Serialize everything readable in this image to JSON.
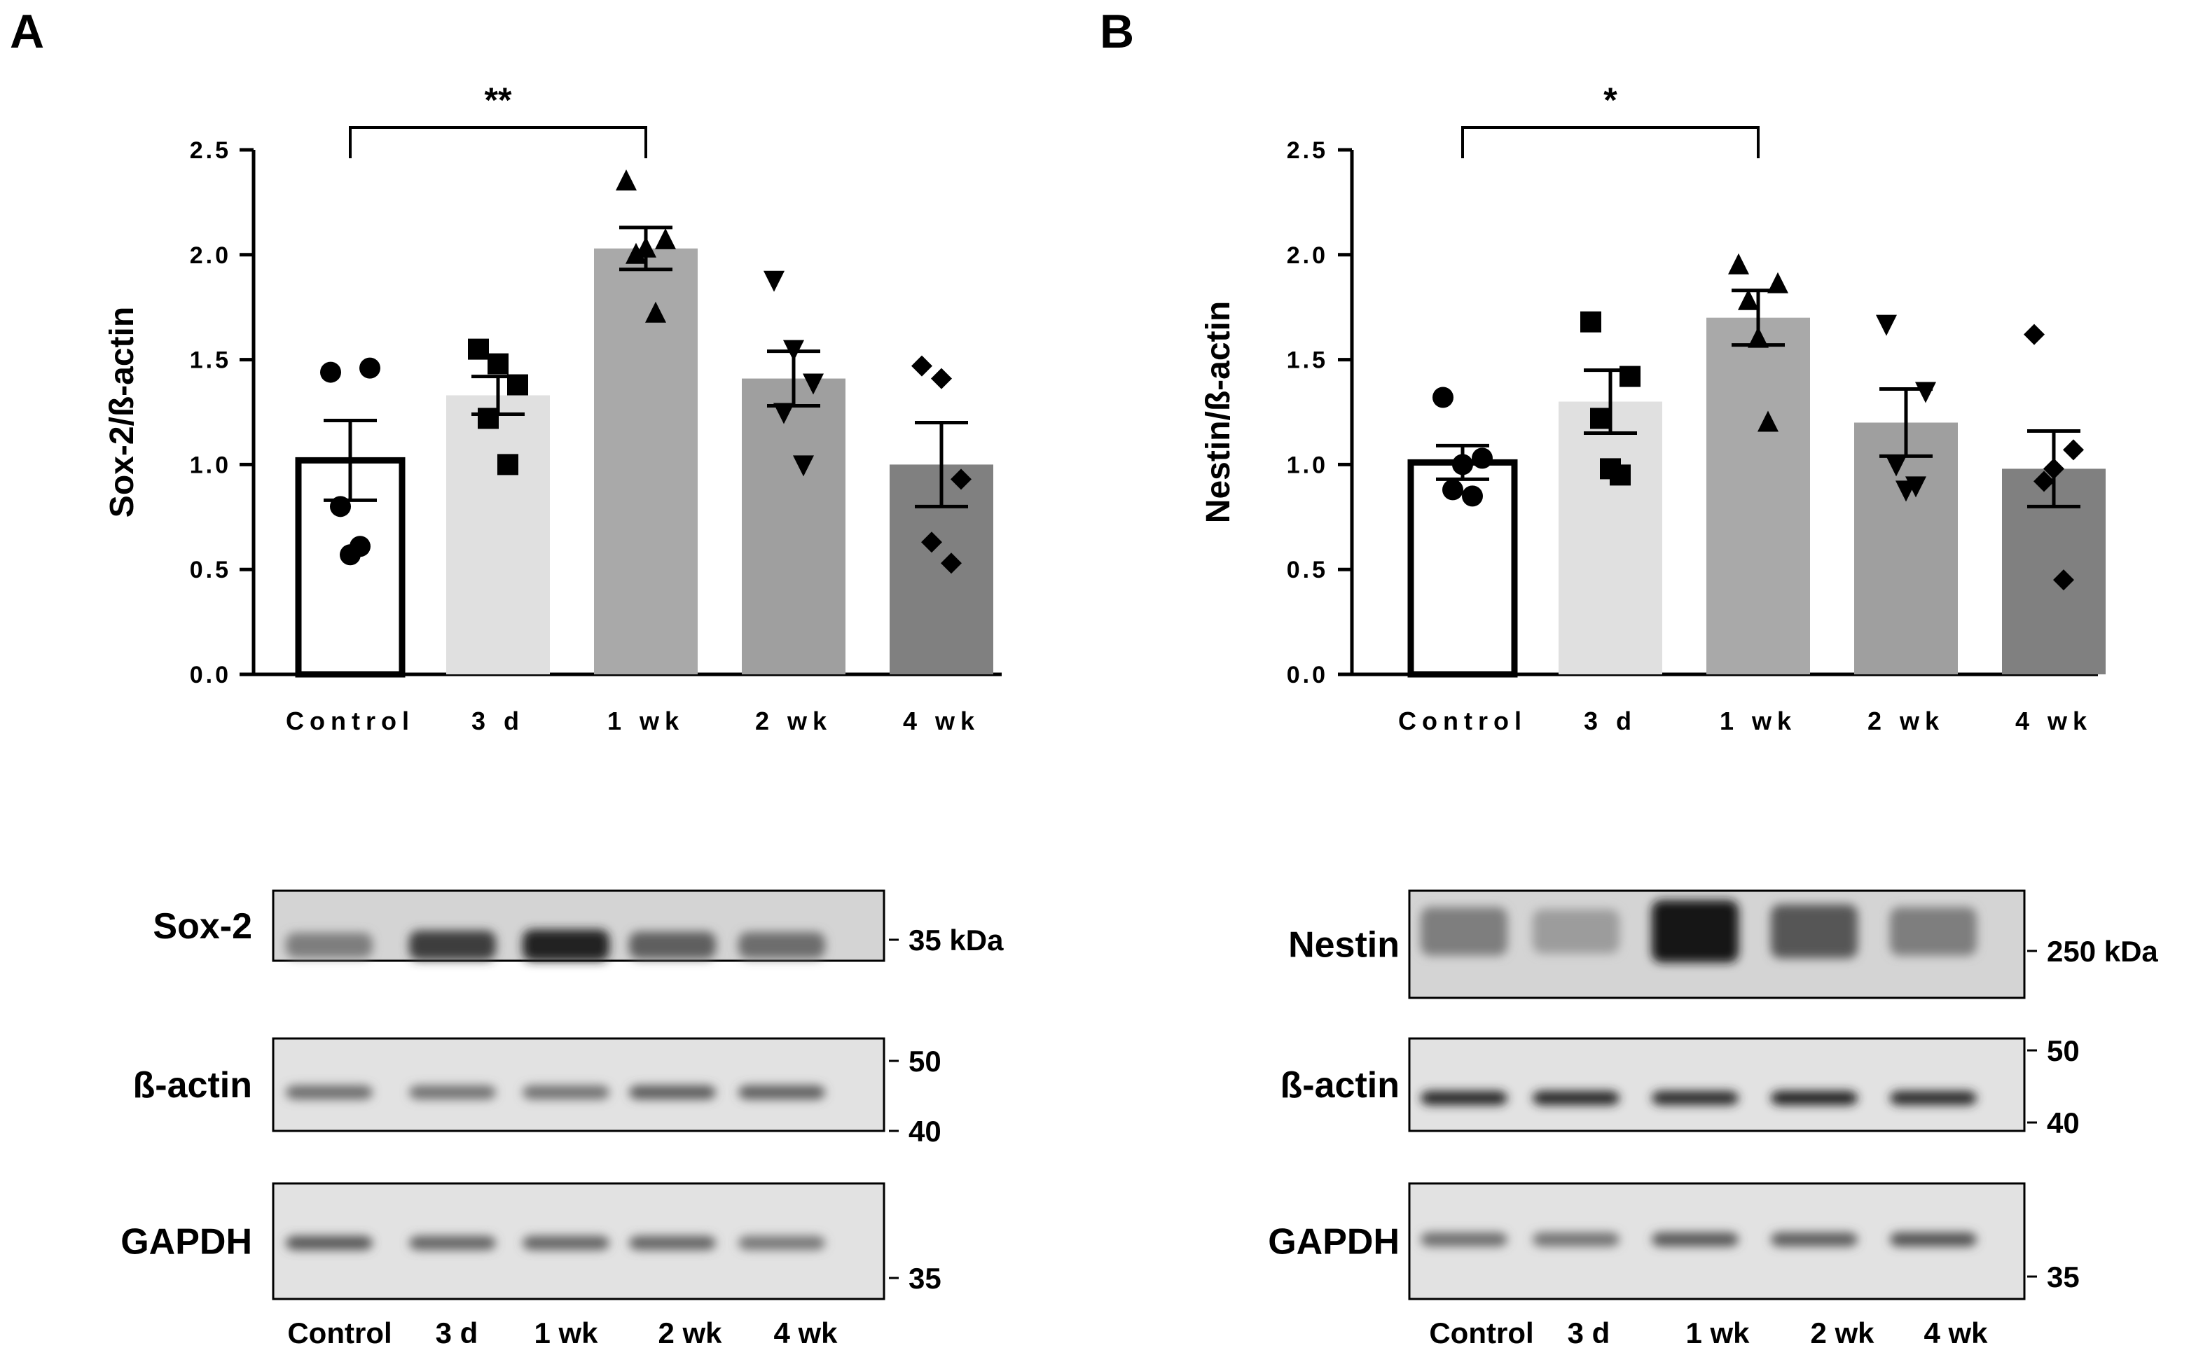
{
  "colors": {
    "control": "#ffffff",
    "d3": "#e0e0e0",
    "wk1": "#a9a9a9",
    "wk2": "#9f9f9f",
    "wk4": "#808080",
    "ink": "#000000"
  },
  "chart_data": [
    {
      "panel": "A",
      "type": "bar",
      "categories": [
        "Control",
        "3 d",
        "1 wk",
        "2 wk",
        "4 wk"
      ],
      "ylabel": "Sox-2/ß-actin",
      "ylim": [
        0,
        2.5
      ],
      "yticks": [
        "0.0",
        "0.5",
        "1.0",
        "1.5",
        "2.0",
        "2.5"
      ],
      "values": [
        1.02,
        1.33,
        2.03,
        1.41,
        1.0
      ],
      "sem": [
        0.19,
        0.09,
        0.1,
        0.13,
        0.2
      ],
      "points": [
        [
          1.44,
          1.46,
          0.8,
          0.61,
          0.57
        ],
        [
          1.55,
          1.38,
          1.22,
          1.0,
          1.48
        ],
        [
          2.35,
          2.07,
          2.0,
          1.72,
          2.03
        ],
        [
          1.88,
          1.39,
          1.25,
          1.0,
          1.55
        ],
        [
          1.47,
          0.93,
          0.63,
          0.53,
          1.41
        ]
      ],
      "markers": [
        "circle",
        "square",
        "triangle-up",
        "triangle-down",
        "diamond"
      ],
      "significance": {
        "from": 0,
        "to": 2,
        "label": "**"
      }
    },
    {
      "panel": "B",
      "type": "bar",
      "categories": [
        "Control",
        "3 d",
        "1 wk",
        "2 wk",
        "4 wk"
      ],
      "ylabel": "Nestin/ß-actin",
      "ylim": [
        0,
        2.5
      ],
      "yticks": [
        "0.0",
        "0.5",
        "1.0",
        "1.5",
        "2.0",
        "2.5"
      ],
      "values": [
        1.01,
        1.3,
        1.7,
        1.2,
        0.98
      ],
      "sem": [
        0.08,
        0.15,
        0.13,
        0.16,
        0.18
      ],
      "points": [
        [
          1.32,
          1.03,
          0.88,
          0.85,
          1.0
        ],
        [
          1.68,
          1.42,
          1.22,
          0.95,
          0.98
        ],
        [
          1.95,
          1.86,
          1.78,
          1.2,
          1.6
        ],
        [
          1.67,
          1.35,
          1.0,
          0.9,
          0.88
        ],
        [
          1.62,
          1.07,
          0.92,
          0.45,
          0.98
        ]
      ],
      "markers": [
        "circle",
        "square",
        "triangle-up",
        "triangle-down",
        "diamond"
      ],
      "significance": {
        "from": 0,
        "to": 2,
        "label": "*"
      }
    }
  ],
  "blots": {
    "A": {
      "panels": [
        {
          "label": "Sox-2",
          "markers": [
            "35 kDa"
          ],
          "intensity": [
            0.55,
            0.82,
            0.95,
            0.68,
            0.62
          ]
        },
        {
          "label": "ß-actin",
          "markers": [
            "50",
            "40"
          ],
          "intensity": [
            0.62,
            0.6,
            0.6,
            0.7,
            0.68
          ]
        },
        {
          "label": "GAPDH",
          "markers": [
            "35"
          ],
          "intensity": [
            0.72,
            0.66,
            0.66,
            0.66,
            0.58
          ]
        }
      ],
      "lanes": [
        "Control",
        "3 d",
        "1 wk",
        "2 wk",
        "4 wk"
      ]
    },
    "B": {
      "panels": [
        {
          "label": "Nestin",
          "markers": [
            "250 kDa"
          ],
          "intensity": [
            0.55,
            0.42,
            0.98,
            0.72,
            0.55
          ]
        },
        {
          "label": "ß-actin",
          "markers": [
            "50",
            "40"
          ],
          "intensity": [
            0.92,
            0.92,
            0.9,
            0.95,
            0.9
          ]
        },
        {
          "label": "GAPDH",
          "markers": [
            "35"
          ],
          "intensity": [
            0.62,
            0.6,
            0.72,
            0.7,
            0.74
          ]
        }
      ],
      "lanes": [
        "Control",
        "3 d",
        "1 wk",
        "2 wk",
        "4 wk"
      ]
    }
  }
}
